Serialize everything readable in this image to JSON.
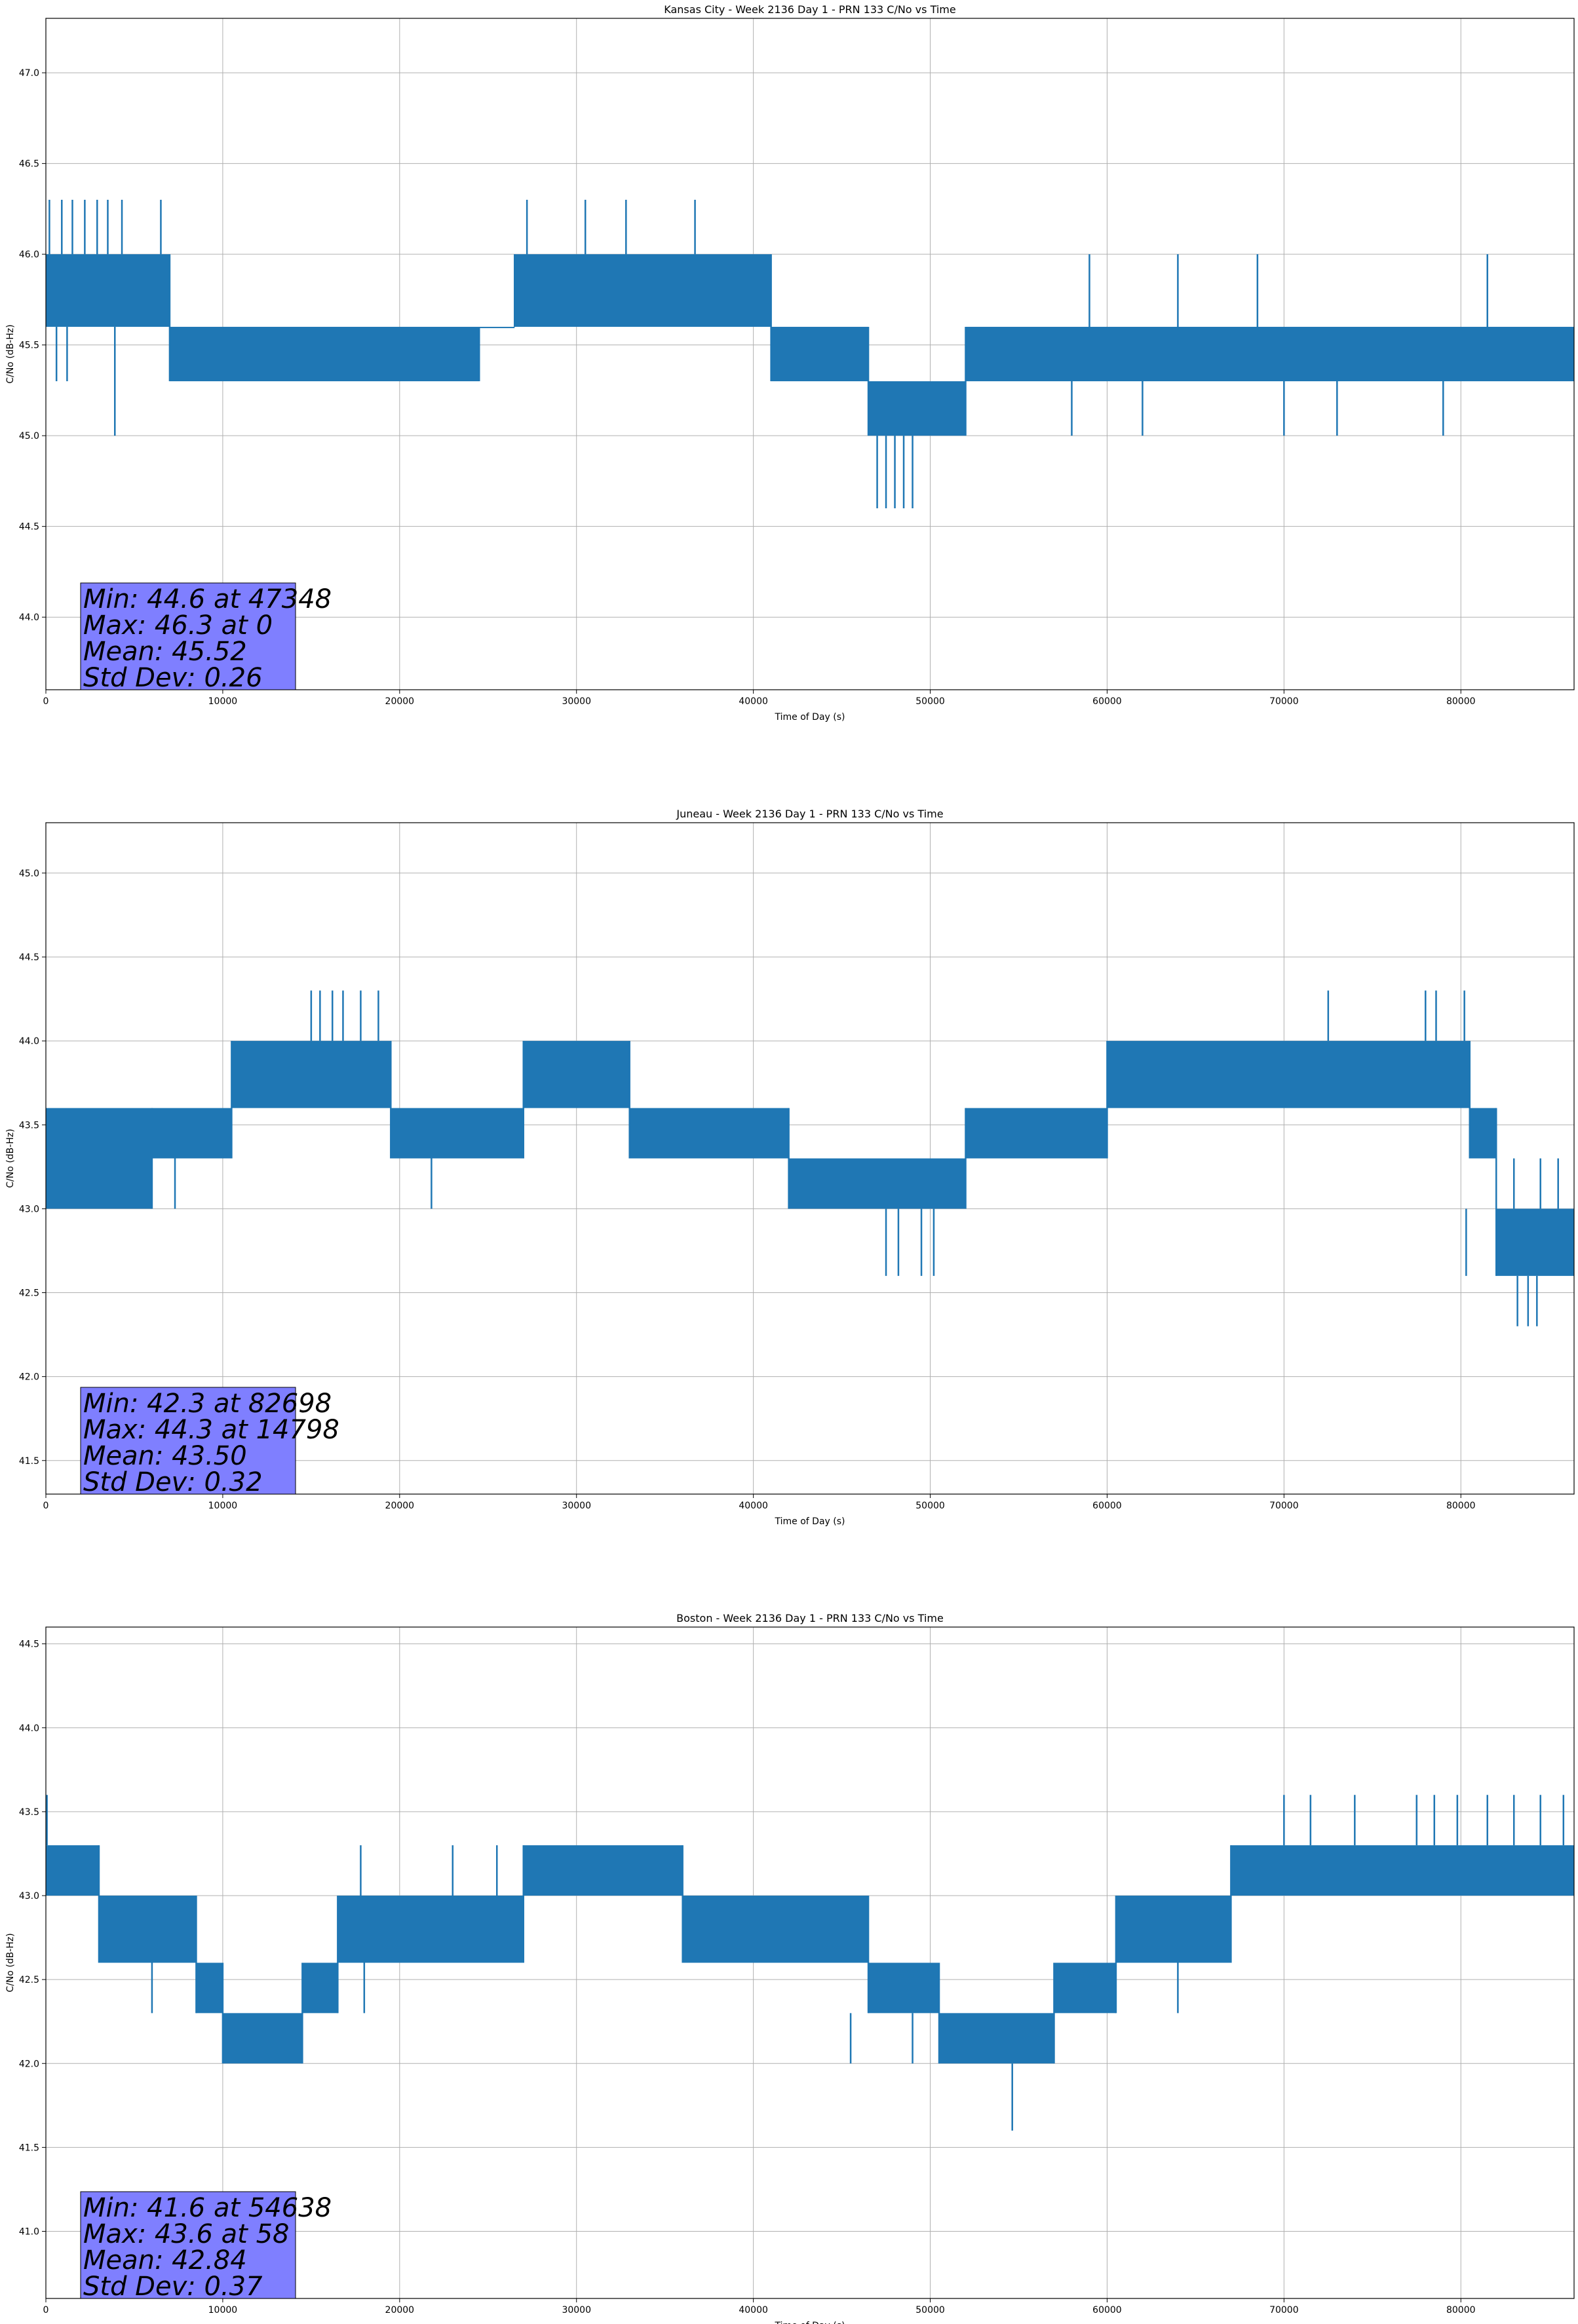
{
  "colors": {
    "series": "#1f77b4",
    "grid": "#b0b0b0",
    "stats_box": "#7f7fff",
    "axes": "#000000"
  },
  "chart_data": [
    {
      "type": "line",
      "title": "Kansas City - Week 2136 Day 1 - PRN 133 C/No vs Time",
      "xlabel": "Time of Day (s)",
      "ylabel": "C/No (dB-Hz)",
      "xlim": [
        0,
        86400
      ],
      "ylim": [
        43.6,
        47.3
      ],
      "xticks": [
        0,
        10000,
        20000,
        30000,
        40000,
        50000,
        60000,
        70000,
        80000
      ],
      "yticks": [
        44.0,
        44.5,
        45.0,
        45.5,
        46.0,
        46.5,
        47.0
      ],
      "ytick_labels": [
        "44.0",
        "44.5",
        "45.0",
        "45.5",
        "46.0",
        "46.5",
        "47.0"
      ],
      "grid": true,
      "stats": [
        "Min: 44.6 at 47348",
        "Max: 46.3 at 0",
        "Mean: 45.52",
        "Std Dev: 0.26"
      ],
      "segments": [
        {
          "x": [
            0,
            7000
          ],
          "lo": 45.6,
          "hi": 46.0
        },
        {
          "x": [
            7000,
            24500
          ],
          "lo": 45.3,
          "hi": 45.6
        },
        {
          "x": [
            24500,
            26500
          ],
          "lo": 45.6,
          "hi": 45.6
        },
        {
          "x": [
            26500,
            41000
          ],
          "lo": 45.6,
          "hi": 46.0
        },
        {
          "x": [
            41000,
            46500
          ],
          "lo": 45.3,
          "hi": 45.6
        },
        {
          "x": [
            46500,
            52000
          ],
          "lo": 45.0,
          "hi": 45.3
        },
        {
          "x": [
            52000,
            86400
          ],
          "lo": 45.3,
          "hi": 45.6
        }
      ],
      "spikes": [
        {
          "x": 200,
          "lo": 46.0,
          "hi": 46.3
        },
        {
          "x": 900,
          "lo": 46.0,
          "hi": 46.3
        },
        {
          "x": 1500,
          "lo": 46.0,
          "hi": 46.3
        },
        {
          "x": 2200,
          "lo": 46.0,
          "hi": 46.3
        },
        {
          "x": 2900,
          "lo": 46.0,
          "hi": 46.3
        },
        {
          "x": 3500,
          "lo": 46.0,
          "hi": 46.3
        },
        {
          "x": 4300,
          "lo": 46.0,
          "hi": 46.3
        },
        {
          "x": 6500,
          "lo": 46.0,
          "hi": 46.3
        },
        {
          "x": 27200,
          "lo": 46.0,
          "hi": 46.3
        },
        {
          "x": 30500,
          "lo": 46.0,
          "hi": 46.3
        },
        {
          "x": 32800,
          "lo": 46.0,
          "hi": 46.3
        },
        {
          "x": 36700,
          "lo": 46.0,
          "hi": 46.3
        },
        {
          "x": 3900,
          "lo": 45.0,
          "hi": 45.6
        },
        {
          "x": 1200,
          "lo": 45.3,
          "hi": 45.6
        },
        {
          "x": 600,
          "lo": 45.3,
          "hi": 45.6
        },
        {
          "x": 47000,
          "lo": 44.6,
          "hi": 45.0
        },
        {
          "x": 47500,
          "lo": 44.6,
          "hi": 45.0
        },
        {
          "x": 48000,
          "lo": 44.6,
          "hi": 45.0
        },
        {
          "x": 48500,
          "lo": 44.6,
          "hi": 45.0
        },
        {
          "x": 49000,
          "lo": 44.6,
          "hi": 45.0
        },
        {
          "x": 58000,
          "lo": 45.0,
          "hi": 45.3
        },
        {
          "x": 62000,
          "lo": 45.0,
          "hi": 45.3
        },
        {
          "x": 70000,
          "lo": 45.0,
          "hi": 45.3
        },
        {
          "x": 73000,
          "lo": 45.0,
          "hi": 45.3
        },
        {
          "x": 79000,
          "lo": 45.0,
          "hi": 45.3
        },
        {
          "x": 59000,
          "lo": 45.6,
          "hi": 46.0
        },
        {
          "x": 64000,
          "lo": 45.6,
          "hi": 46.0
        },
        {
          "x": 68500,
          "lo": 45.6,
          "hi": 46.0
        },
        {
          "x": 81500,
          "lo": 45.6,
          "hi": 46.0
        }
      ]
    },
    {
      "type": "line",
      "title": "Juneau - Week 2136 Day 1 - PRN 133 C/No vs Time",
      "xlabel": "Time of Day (s)",
      "ylabel": "C/No (dB-Hz)",
      "xlim": [
        0,
        86400
      ],
      "ylim": [
        41.3,
        45.3
      ],
      "xticks": [
        0,
        10000,
        20000,
        30000,
        40000,
        50000,
        60000,
        70000,
        80000
      ],
      "yticks": [
        41.5,
        42.0,
        42.5,
        43.0,
        43.5,
        44.0,
        44.5,
        45.0
      ],
      "ytick_labels": [
        "41.5",
        "42.0",
        "42.5",
        "43.0",
        "43.5",
        "44.0",
        "44.5",
        "45.0"
      ],
      "grid": true,
      "stats": [
        "Min: 42.3 at 82698",
        "Max: 44.3 at 14798",
        "Mean: 43.50",
        "Std Dev: 0.32"
      ],
      "segments": [
        {
          "x": [
            0,
            6000
          ],
          "lo": 43.0,
          "hi": 43.6
        },
        {
          "x": [
            6000,
            10500
          ],
          "lo": 43.3,
          "hi": 43.6
        },
        {
          "x": [
            10500,
            19500
          ],
          "lo": 43.6,
          "hi": 44.0
        },
        {
          "x": [
            19500,
            27000
          ],
          "lo": 43.3,
          "hi": 43.6
        },
        {
          "x": [
            27000,
            33000
          ],
          "lo": 43.6,
          "hi": 44.0
        },
        {
          "x": [
            33000,
            42000
          ],
          "lo": 43.3,
          "hi": 43.6
        },
        {
          "x": [
            42000,
            52000
          ],
          "lo": 43.0,
          "hi": 43.3
        },
        {
          "x": [
            52000,
            60000
          ],
          "lo": 43.3,
          "hi": 43.6
        },
        {
          "x": [
            60000,
            80500
          ],
          "lo": 43.6,
          "hi": 44.0
        },
        {
          "x": [
            80500,
            82000
          ],
          "lo": 43.3,
          "hi": 43.6
        },
        {
          "x": [
            82000,
            86400
          ],
          "lo": 42.6,
          "hi": 43.0
        }
      ],
      "spikes": [
        {
          "x": 15000,
          "lo": 44.0,
          "hi": 44.3
        },
        {
          "x": 15500,
          "lo": 44.0,
          "hi": 44.3
        },
        {
          "x": 16200,
          "lo": 44.0,
          "hi": 44.3
        },
        {
          "x": 16800,
          "lo": 44.0,
          "hi": 44.3
        },
        {
          "x": 17800,
          "lo": 44.0,
          "hi": 44.3
        },
        {
          "x": 18800,
          "lo": 44.0,
          "hi": 44.3
        },
        {
          "x": 72500,
          "lo": 44.0,
          "hi": 44.3
        },
        {
          "x": 78000,
          "lo": 44.0,
          "hi": 44.3
        },
        {
          "x": 78600,
          "lo": 44.0,
          "hi": 44.3
        },
        {
          "x": 80200,
          "lo": 44.0,
          "hi": 44.3
        },
        {
          "x": 21800,
          "lo": 43.0,
          "hi": 43.3
        },
        {
          "x": 7300,
          "lo": 43.0,
          "hi": 43.3
        },
        {
          "x": 47500,
          "lo": 42.6,
          "hi": 43.0
        },
        {
          "x": 48200,
          "lo": 42.6,
          "hi": 43.0
        },
        {
          "x": 49500,
          "lo": 42.6,
          "hi": 43.0
        },
        {
          "x": 50200,
          "lo": 42.6,
          "hi": 43.0
        },
        {
          "x": 80300,
          "lo": 42.6,
          "hi": 43.0
        },
        {
          "x": 83200,
          "lo": 42.3,
          "hi": 42.6
        },
        {
          "x": 83800,
          "lo": 42.3,
          "hi": 42.6
        },
        {
          "x": 84300,
          "lo": 42.3,
          "hi": 42.6
        },
        {
          "x": 83000,
          "lo": 43.0,
          "hi": 43.3
        },
        {
          "x": 84500,
          "lo": 43.0,
          "hi": 43.3
        },
        {
          "x": 85500,
          "lo": 43.0,
          "hi": 43.3
        }
      ]
    },
    {
      "type": "line",
      "title": "Boston - Week 2136 Day 1 - PRN 133 C/No vs Time",
      "xlabel": "Time of Day (s)",
      "ylabel": "C/No (dB-Hz)",
      "xlim": [
        0,
        86400
      ],
      "ylim": [
        40.6,
        44.6
      ],
      "xticks": [
        0,
        10000,
        20000,
        30000,
        40000,
        50000,
        60000,
        70000,
        80000
      ],
      "yticks": [
        41.0,
        41.5,
        42.0,
        42.5,
        43.0,
        43.5,
        44.0,
        44.5
      ],
      "ytick_labels": [
        "41.0",
        "41.5",
        "42.0",
        "42.5",
        "43.0",
        "43.5",
        "44.0",
        "44.5"
      ],
      "grid": true,
      "stats": [
        "Min: 41.6 at 54638",
        "Max: 43.6 at 58",
        "Mean: 42.84",
        "Std Dev: 0.37"
      ],
      "segments": [
        {
          "x": [
            0,
            3000
          ],
          "lo": 43.0,
          "hi": 43.3
        },
        {
          "x": [
            3000,
            8500
          ],
          "lo": 42.6,
          "hi": 43.0
        },
        {
          "x": [
            8500,
            10000
          ],
          "lo": 42.3,
          "hi": 42.6
        },
        {
          "x": [
            10000,
            14500
          ],
          "lo": 42.0,
          "hi": 42.3
        },
        {
          "x": [
            14500,
            16500
          ],
          "lo": 42.3,
          "hi": 42.6
        },
        {
          "x": [
            16500,
            27000
          ],
          "lo": 42.6,
          "hi": 43.0
        },
        {
          "x": [
            27000,
            36000
          ],
          "lo": 43.0,
          "hi": 43.3
        },
        {
          "x": [
            36000,
            46500
          ],
          "lo": 42.6,
          "hi": 43.0
        },
        {
          "x": [
            46500,
            50500
          ],
          "lo": 42.3,
          "hi": 42.6
        },
        {
          "x": [
            50500,
            57000
          ],
          "lo": 42.0,
          "hi": 42.3
        },
        {
          "x": [
            57000,
            60500
          ],
          "lo": 42.3,
          "hi": 42.6
        },
        {
          "x": [
            60500,
            67000
          ],
          "lo": 42.6,
          "hi": 43.0
        },
        {
          "x": [
            67000,
            86400
          ],
          "lo": 43.0,
          "hi": 43.3
        }
      ],
      "spikes": [
        {
          "x": 60,
          "lo": 43.3,
          "hi": 43.6
        },
        {
          "x": 70000,
          "lo": 43.3,
          "hi": 43.6
        },
        {
          "x": 71500,
          "lo": 43.3,
          "hi": 43.6
        },
        {
          "x": 74000,
          "lo": 43.3,
          "hi": 43.6
        },
        {
          "x": 77500,
          "lo": 43.3,
          "hi": 43.6
        },
        {
          "x": 78500,
          "lo": 43.3,
          "hi": 43.6
        },
        {
          "x": 79800,
          "lo": 43.3,
          "hi": 43.6
        },
        {
          "x": 81500,
          "lo": 43.3,
          "hi": 43.6
        },
        {
          "x": 83000,
          "lo": 43.3,
          "hi": 43.6
        },
        {
          "x": 84500,
          "lo": 43.3,
          "hi": 43.6
        },
        {
          "x": 85800,
          "lo": 43.3,
          "hi": 43.6
        },
        {
          "x": 54638,
          "lo": 41.6,
          "hi": 42.0
        },
        {
          "x": 6000,
          "lo": 42.3,
          "hi": 42.6
        },
        {
          "x": 18000,
          "lo": 42.3,
          "hi": 42.6
        },
        {
          "x": 45500,
          "lo": 42.0,
          "hi": 42.3
        },
        {
          "x": 49000,
          "lo": 42.0,
          "hi": 42.3
        },
        {
          "x": 64000,
          "lo": 42.3,
          "hi": 42.6
        },
        {
          "x": 17800,
          "lo": 43.0,
          "hi": 43.3
        },
        {
          "x": 23000,
          "lo": 43.0,
          "hi": 43.3
        },
        {
          "x": 25500,
          "lo": 43.0,
          "hi": 43.3
        }
      ]
    }
  ]
}
